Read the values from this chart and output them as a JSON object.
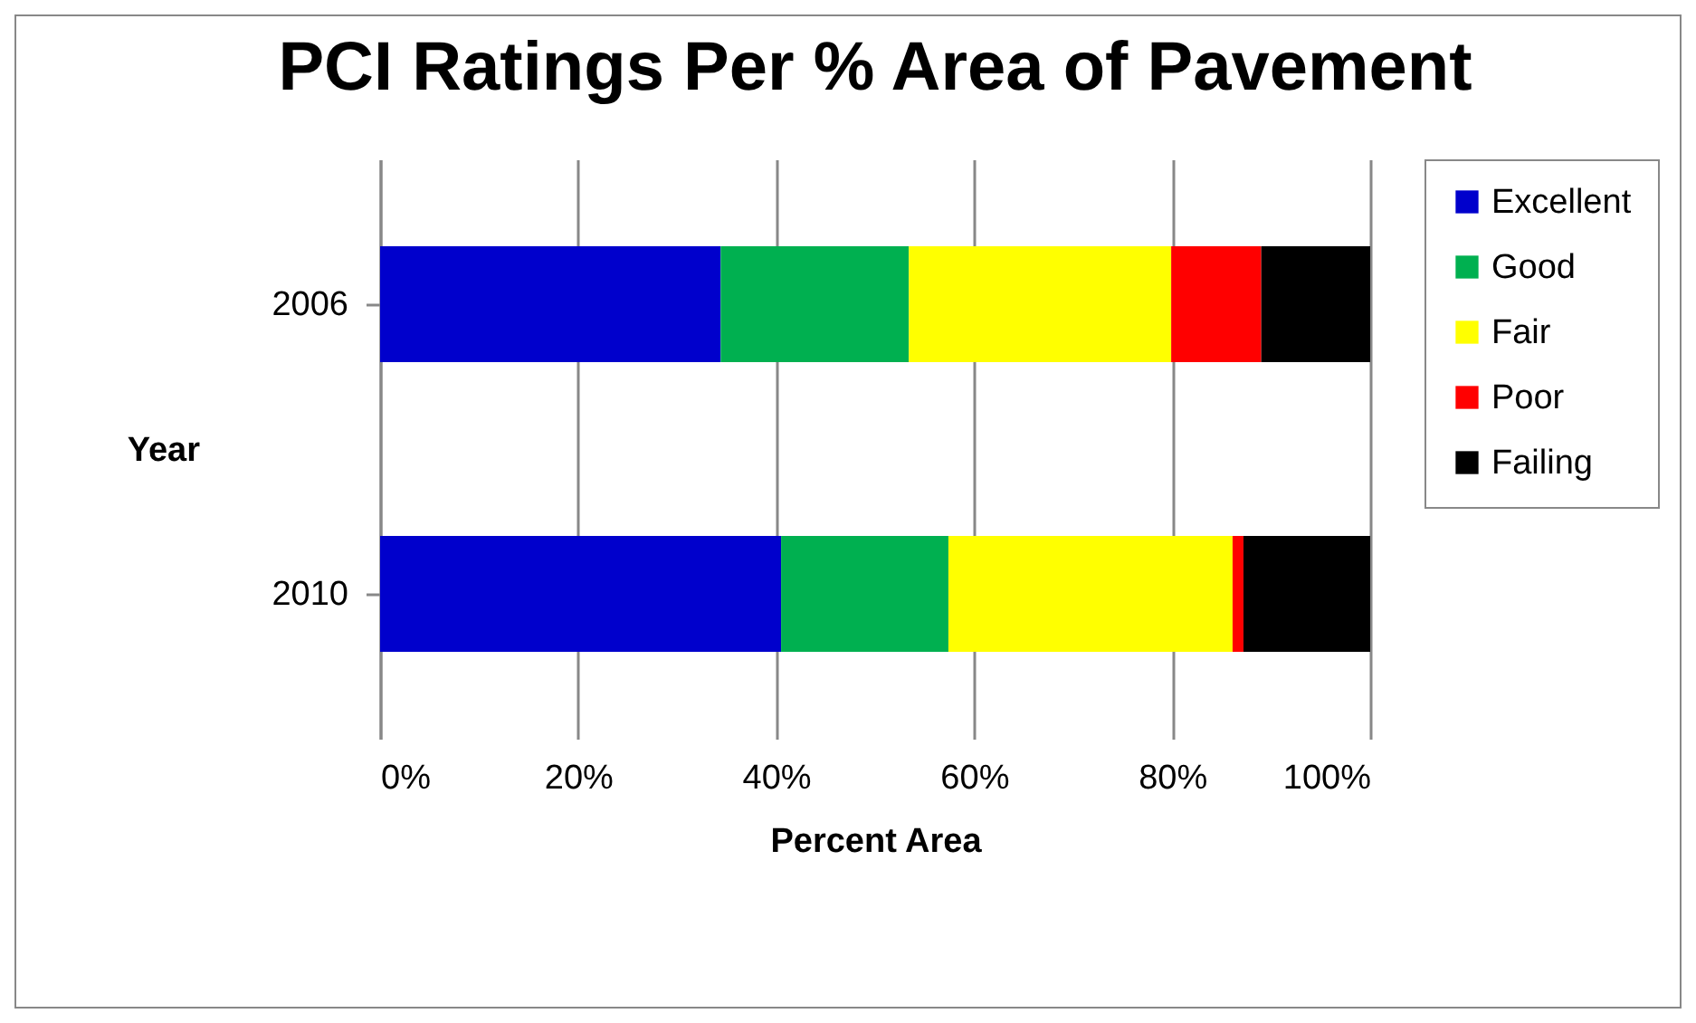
{
  "chart_data": {
    "type": "bar",
    "title": "PCI Ratings Per % Area of Pavement",
    "xlabel": "Percent Area",
    "ylabel": "Year",
    "orientation": "horizontal",
    "stacked": true,
    "categories": [
      "2006",
      "2010"
    ],
    "series": [
      {
        "name": "Excellent",
        "color": "#0000cc",
        "values": [
          34.4,
          40.5
        ]
      },
      {
        "name": "Good",
        "color": "#00b050",
        "values": [
          19.0,
          16.9
        ]
      },
      {
        "name": "Fair",
        "color": "#ffff00",
        "values": [
          26.5,
          28.7
        ]
      },
      {
        "name": "Poor",
        "color": "#ff0000",
        "values": [
          9.1,
          1.1
        ]
      },
      {
        "name": "Failing",
        "color": "#000000",
        "values": [
          11.0,
          12.8
        ]
      }
    ],
    "xlim": [
      0,
      100
    ],
    "xticks": [
      {
        "value": 0,
        "label": "0%"
      },
      {
        "value": 20,
        "label": "20%"
      },
      {
        "value": 40,
        "label": "40%"
      },
      {
        "value": 60,
        "label": "60%"
      },
      {
        "value": 80,
        "label": "80%"
      },
      {
        "value": 100,
        "label": "100%"
      }
    ],
    "grid": "x",
    "legend": "right"
  }
}
